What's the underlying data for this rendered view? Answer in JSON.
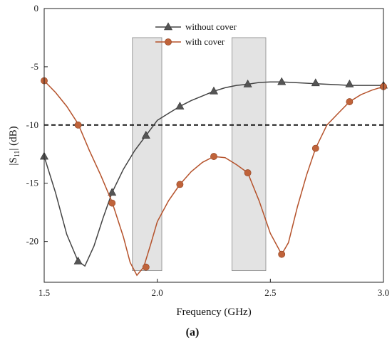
{
  "chart_data": {
    "type": "line",
    "title": "",
    "xlabel": "Frequency (GHz)",
    "ylabel": "|S11| (dB)",
    "ylabel_main": "|S",
    "ylabel_sub": "11",
    "ylabel_tail": "| (dB)",
    "caption": "(a)",
    "xlim": [
      1.5,
      3.0
    ],
    "ylim": [
      -23.5,
      0
    ],
    "x_ticks": [
      1.5,
      2.0,
      2.5,
      3.0
    ],
    "x_tick_labels": [
      "1.5",
      "2.0",
      "2.5",
      "3.0"
    ],
    "y_ticks": [
      0,
      -5,
      -10,
      -15,
      -20
    ],
    "y_tick_labels": [
      "0",
      "-5",
      "-10",
      "-15",
      "-20"
    ],
    "reference_line": {
      "y": -10,
      "style": "dashed",
      "color": "#111111"
    },
    "shaded_bands": [
      {
        "x": [
          1.89,
          2.02
        ],
        "y": [
          -22.5,
          -2.5
        ]
      },
      {
        "x": [
          2.33,
          2.48
        ],
        "y": [
          -22.5,
          -2.5
        ]
      }
    ],
    "legend_placement": "top-center",
    "series": [
      {
        "name": "without cover",
        "marker": "triangle",
        "color": "#444444",
        "curve": [
          [
            1.5,
            -12.7
          ],
          [
            1.55,
            -15.8
          ],
          [
            1.6,
            -19.4
          ],
          [
            1.65,
            -21.7
          ],
          [
            1.68,
            -22.1
          ],
          [
            1.72,
            -20.4
          ],
          [
            1.76,
            -18.0
          ],
          [
            1.8,
            -15.8
          ],
          [
            1.85,
            -13.8
          ],
          [
            1.9,
            -12.2
          ],
          [
            1.95,
            -10.9
          ],
          [
            2.0,
            -9.6
          ],
          [
            2.05,
            -9.0
          ],
          [
            2.1,
            -8.4
          ],
          [
            2.15,
            -7.9
          ],
          [
            2.2,
            -7.5
          ],
          [
            2.25,
            -7.1
          ],
          [
            2.3,
            -6.8
          ],
          [
            2.35,
            -6.6
          ],
          [
            2.4,
            -6.5
          ],
          [
            2.45,
            -6.35
          ],
          [
            2.5,
            -6.3
          ],
          [
            2.55,
            -6.3
          ],
          [
            2.6,
            -6.35
          ],
          [
            2.65,
            -6.4
          ],
          [
            2.7,
            -6.45
          ],
          [
            2.75,
            -6.5
          ],
          [
            2.8,
            -6.55
          ],
          [
            2.85,
            -6.6
          ],
          [
            2.9,
            -6.6
          ],
          [
            2.95,
            -6.6
          ],
          [
            3.0,
            -6.6
          ]
        ],
        "markers": [
          [
            1.5,
            -12.7
          ],
          [
            1.65,
            -21.7
          ],
          [
            1.8,
            -15.8
          ],
          [
            1.95,
            -10.9
          ],
          [
            2.1,
            -8.4
          ],
          [
            2.25,
            -7.1
          ],
          [
            2.4,
            -6.5
          ],
          [
            2.55,
            -6.3
          ],
          [
            2.7,
            -6.4
          ],
          [
            2.85,
            -6.5
          ],
          [
            3.0,
            -6.6
          ]
        ]
      },
      {
        "name": "with cover",
        "marker": "circle",
        "color": "#b5522b",
        "curve": [
          [
            1.5,
            -6.2
          ],
          [
            1.55,
            -7.2
          ],
          [
            1.6,
            -8.4
          ],
          [
            1.65,
            -9.9
          ],
          [
            1.7,
            -12.2
          ],
          [
            1.75,
            -14.3
          ],
          [
            1.8,
            -16.6
          ],
          [
            1.85,
            -19.6
          ],
          [
            1.88,
            -21.8
          ],
          [
            1.91,
            -22.9
          ],
          [
            1.94,
            -22.2
          ],
          [
            1.97,
            -20.3
          ],
          [
            2.0,
            -18.3
          ],
          [
            2.05,
            -16.5
          ],
          [
            2.1,
            -15.1
          ],
          [
            2.15,
            -14.0
          ],
          [
            2.2,
            -13.2
          ],
          [
            2.25,
            -12.7
          ],
          [
            2.3,
            -12.8
          ],
          [
            2.35,
            -13.4
          ],
          [
            2.4,
            -14.1
          ],
          [
            2.45,
            -16.5
          ],
          [
            2.5,
            -19.3
          ],
          [
            2.55,
            -21.1
          ],
          [
            2.58,
            -20.1
          ],
          [
            2.62,
            -17.0
          ],
          [
            2.66,
            -14.3
          ],
          [
            2.7,
            -12.0
          ],
          [
            2.75,
            -10.0
          ],
          [
            2.8,
            -9.0
          ],
          [
            2.85,
            -8.0
          ],
          [
            2.9,
            -7.4
          ],
          [
            2.95,
            -7.0
          ],
          [
            3.0,
            -6.7
          ]
        ],
        "markers": [
          [
            1.5,
            -6.2
          ],
          [
            1.65,
            -10.0
          ],
          [
            1.8,
            -16.7
          ],
          [
            1.95,
            -22.2
          ],
          [
            2.1,
            -15.1
          ],
          [
            2.25,
            -12.7
          ],
          [
            2.4,
            -14.1
          ],
          [
            2.55,
            -21.1
          ],
          [
            2.7,
            -12.0
          ],
          [
            2.85,
            -8.0
          ],
          [
            3.0,
            -6.7
          ]
        ]
      }
    ]
  }
}
